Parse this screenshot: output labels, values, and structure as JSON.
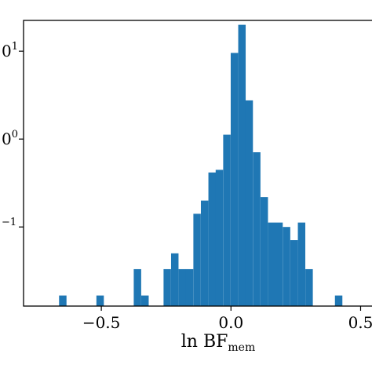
{
  "chart_data": {
    "type": "bar",
    "title": "",
    "xlabel": "ln BF",
    "xlabel_subscript": "mem",
    "ylabel": "",
    "yscale": "log",
    "xlim": [
      -0.8,
      0.55
    ],
    "ylim_log10": [
      -1.9,
      1.35
    ],
    "x_ticks": [
      {
        "value": -0.5,
        "label": "−0.5"
      },
      {
        "value": 0.0,
        "label": "0.0"
      },
      {
        "value": 0.5,
        "label": "0.5"
      }
    ],
    "y_ticks": [
      {
        "value_log10": 1,
        "label": "0",
        "superscript": "1"
      },
      {
        "value_log10": 0,
        "label": "0",
        "superscript": "0"
      },
      {
        "value_log10": -1,
        "label": "",
        "superscript": "−1"
      }
    ],
    "bar_color": "#1f77b4",
    "bin_width": 0.0287,
    "bin_left_edges": [
      -0.663,
      -0.519,
      -0.375,
      -0.346,
      -0.26,
      -0.231,
      -0.202,
      -0.174,
      -0.145,
      -0.116,
      -0.087,
      -0.059,
      -0.03,
      -0.001,
      0.028,
      0.056,
      0.085,
      0.114,
      0.143,
      0.171,
      0.2,
      0.229,
      0.258,
      0.287,
      0.401
    ],
    "values_log10": [
      -1.78,
      -1.78,
      -1.48,
      -1.78,
      -1.48,
      -1.3,
      -1.48,
      -1.48,
      -0.85,
      -0.7,
      -0.38,
      -0.35,
      0.05,
      0.98,
      1.3,
      0.44,
      -0.15,
      -0.66,
      -0.95,
      -0.95,
      -1.0,
      -1.15,
      -0.95,
      -1.48,
      -1.78
    ]
  }
}
